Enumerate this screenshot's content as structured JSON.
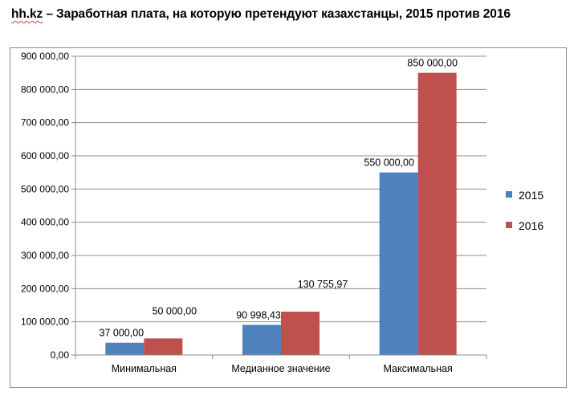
{
  "page": {
    "title_site": "hh.kz",
    "title_rest": " – Заработная плата, на которую претендуют казахстанцы, 2015 против 2016"
  },
  "colors": {
    "series_2015": "#4f81bd",
    "series_2016": "#c0504d",
    "gridline": "#8c8c8c",
    "axis": "#8c8c8c"
  },
  "chart_data": {
    "type": "bar",
    "title": "",
    "xlabel": "",
    "ylabel": "",
    "categories": [
      "Минимальная",
      "Медианное значение",
      "Максимальная"
    ],
    "series": [
      {
        "name": "2015",
        "values": [
          37000,
          90998.43,
          550000
        ],
        "labels": [
          "37 000,00",
          "90 998,43",
          "550 000,00"
        ]
      },
      {
        "name": "2016",
        "values": [
          50000,
          130755.97,
          850000
        ],
        "labels": [
          "50 000,00",
          "130 755,97",
          "850 000,00"
        ]
      }
    ],
    "ylim": [
      0,
      900000
    ],
    "ytick_values": [
      0,
      100000,
      200000,
      300000,
      400000,
      500000,
      600000,
      700000,
      800000,
      900000
    ],
    "ytick_labels": [
      "0,00",
      "100 000,00",
      "200 000,00",
      "300 000,00",
      "400 000,00",
      "500 000,00",
      "600 000,00",
      "700 000,00",
      "800 000,00",
      "900 000,00"
    ],
    "grid": true,
    "legend_position": "right"
  }
}
